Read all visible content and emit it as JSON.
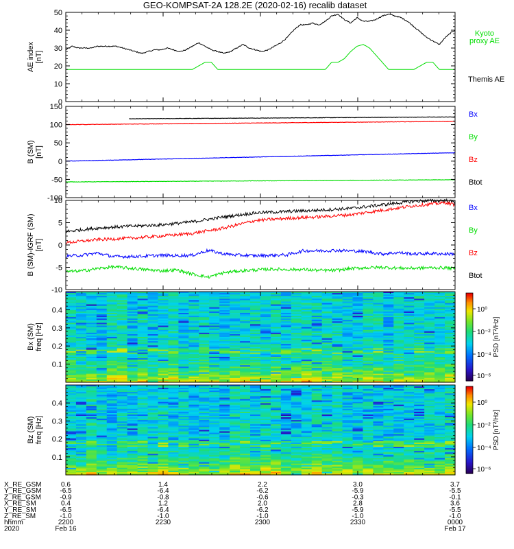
{
  "title": "GEO-KOMPSAT-2A 128.2E (2020-02-16) recalib dataset",
  "colors": {
    "black": "#000000",
    "red": "#ff0000",
    "blue": "#0000ff",
    "green": "#00dd00"
  },
  "chart_data": [
    {
      "type": "line",
      "panel": "ae",
      "ylabel": "AE index\n[nT]",
      "ylim": [
        0,
        50
      ],
      "yticks": [
        "0",
        "10",
        "20",
        "30",
        "40",
        "50"
      ],
      "grid": false,
      "legend": [
        {
          "label": "Kyoto\nproxy AE",
          "color": "#00dd00"
        },
        {
          "label": "Themis AE",
          "color": "#000000"
        }
      ],
      "series": [
        {
          "name": "Kyoto proxy AE",
          "color": "#00dd00",
          "x": [
            0,
            40,
            42,
            44,
            46,
            48,
            82,
            84,
            86,
            88,
            90,
            92,
            94,
            96,
            98,
            100,
            102,
            104,
            106,
            110,
            112,
            114,
            116,
            118,
            120,
            123
          ],
          "y": [
            18,
            18,
            20,
            22,
            22,
            18,
            18,
            22,
            22,
            24,
            28,
            31,
            32,
            30,
            26,
            22,
            18,
            18,
            18,
            18,
            20,
            22,
            22,
            18,
            18,
            18
          ]
        },
        {
          "name": "Themis AE",
          "color": "#000000",
          "x": [
            0,
            2,
            4,
            6,
            8,
            10,
            12,
            14,
            16,
            18,
            20,
            22,
            24,
            26,
            28,
            30,
            32,
            34,
            36,
            38,
            40,
            42,
            44,
            46,
            48,
            50,
            52,
            54,
            56,
            58,
            60,
            62,
            64,
            66,
            68,
            70,
            72,
            74,
            76,
            78,
            80,
            82,
            84,
            86,
            88,
            90,
            92,
            94,
            96,
            98,
            100,
            102,
            104,
            106,
            108,
            110,
            112,
            114,
            116,
            118,
            120,
            122,
            123
          ],
          "y": [
            29,
            31,
            30,
            30,
            30,
            31,
            31,
            31,
            31,
            30,
            29,
            28,
            27,
            28,
            29,
            29,
            30,
            29,
            28,
            29,
            31,
            33,
            31,
            29,
            28,
            27,
            28,
            30,
            32,
            30,
            29,
            28,
            29,
            31,
            33,
            36,
            40,
            43,
            43,
            44,
            43,
            45,
            48,
            49,
            46,
            44,
            47,
            45,
            45,
            46,
            48,
            49,
            48,
            47,
            45,
            42,
            39,
            36,
            34,
            32,
            36,
            39,
            40
          ]
        }
      ]
    },
    {
      "type": "line",
      "panel": "b_sm",
      "ylabel": "B (SM)\n[nT]",
      "ylim": [
        -100,
        150
      ],
      "yticks": [
        "-100",
        "-50",
        "0",
        "50",
        "100",
        "150"
      ],
      "grid": false,
      "legend": [
        {
          "label": "Bx",
          "color": "#0000ff"
        },
        {
          "label": "By",
          "color": "#00dd00"
        },
        {
          "label": "Bz",
          "color": "#ff0000"
        },
        {
          "label": "Btot",
          "color": "#000000"
        }
      ],
      "series": [
        {
          "name": "Btot",
          "color": "#000000",
          "x": [
            20,
            123
          ],
          "y": [
            116,
            121
          ]
        },
        {
          "name": "Bz",
          "color": "#ff0000",
          "x": [
            0,
            123
          ],
          "y": [
            100,
            109
          ]
        },
        {
          "name": "Bx",
          "color": "#0000ff",
          "x": [
            0,
            123
          ],
          "y": [
            0,
            23
          ]
        },
        {
          "name": "By",
          "color": "#00dd00",
          "x": [
            0,
            123
          ],
          "y": [
            -57,
            -51
          ]
        }
      ]
    },
    {
      "type": "line",
      "panel": "b_minus_igrf",
      "ylabel": "B (SM)-IGRF (SM)\n[nT]",
      "ylim": [
        -10,
        10
      ],
      "yticks": [
        "-10",
        "-5",
        "0",
        "5",
        "10"
      ],
      "grid": false,
      "legend": [
        {
          "label": "Bx",
          "color": "#0000ff"
        },
        {
          "label": "By",
          "color": "#00dd00"
        },
        {
          "label": "Bz",
          "color": "#ff0000"
        },
        {
          "label": "Btot",
          "color": "#000000"
        }
      ],
      "series": [
        {
          "name": "Btot",
          "color": "#000000",
          "x": [
            0,
            10,
            20,
            30,
            40,
            50,
            60,
            70,
            80,
            90,
            100,
            110,
            120,
            123
          ],
          "y": [
            3,
            3.8,
            4.2,
            4.5,
            5.2,
            6.3,
            7.2,
            7.5,
            7.8,
            8.2,
            9,
            9.8,
            10,
            9.6
          ]
        },
        {
          "name": "Bz",
          "color": "#ff0000",
          "x": [
            0,
            10,
            20,
            30,
            40,
            50,
            60,
            70,
            80,
            90,
            100,
            110,
            120,
            123
          ],
          "y": [
            0.5,
            1.2,
            1.5,
            2,
            2.6,
            3.8,
            5.5,
            6,
            6.3,
            6.8,
            7.8,
            8.8,
            9.5,
            9
          ]
        },
        {
          "name": "Bx",
          "color": "#0000ff",
          "x": [
            0,
            5,
            10,
            15,
            20,
            25,
            30,
            35,
            40,
            45,
            50,
            55,
            60,
            65,
            70,
            75,
            80,
            85,
            90,
            95,
            100,
            105,
            110,
            115,
            120,
            123
          ],
          "y": [
            -2.5,
            -2.3,
            -1.8,
            -2.6,
            -2.6,
            -2.5,
            -2.3,
            -2.4,
            -2.3,
            -1.2,
            -2,
            -2.3,
            -2.4,
            -2.3,
            -2.2,
            -1.3,
            -1.3,
            -1.2,
            -1.3,
            -1.5,
            -2,
            -1.7,
            -2,
            -1.9,
            -2,
            -2
          ]
        },
        {
          "name": "By",
          "color": "#00dd00",
          "x": [
            0,
            5,
            10,
            15,
            20,
            25,
            30,
            35,
            40,
            45,
            50,
            55,
            60,
            65,
            70,
            75,
            80,
            85,
            90,
            95,
            100,
            105,
            110,
            115,
            120,
            123
          ],
          "y": [
            -6,
            -5.8,
            -5.3,
            -4.9,
            -5.2,
            -5.5,
            -5.8,
            -5.6,
            -6.5,
            -7.2,
            -6.2,
            -5.8,
            -5.6,
            -5.4,
            -5.5,
            -5.5,
            -5.7,
            -5.7,
            -5.3,
            -5.1,
            -5,
            -5.2,
            -5.2,
            -5.1,
            -5.1,
            -5.3
          ]
        }
      ]
    },
    {
      "type": "heatmap",
      "panel": "bx_spec",
      "ylabel": "Bx (SM)\nfreq [Hz]",
      "ylim": [
        0,
        0.5
      ],
      "yticks": [
        "0.1",
        "0.2",
        "0.3",
        "0.4"
      ],
      "colorbar_label": "PSD [nT²/Hz]",
      "colorbar_ticks": [
        "10⁰",
        "10⁻²",
        "10⁻⁴",
        "10⁻⁶"
      ]
    },
    {
      "type": "heatmap",
      "panel": "bz_spec",
      "ylabel": "Bz (SM)\nfreq [Hz]",
      "ylim": [
        0,
        0.5
      ],
      "yticks": [
        "0.1",
        "0.2",
        "0.3",
        "0.4"
      ],
      "colorbar_label": "PSD [nT²/Hz]",
      "colorbar_ticks": [
        "10⁰",
        "10⁻²",
        "10⁻⁴",
        "10⁻⁶"
      ]
    }
  ],
  "orbit_table": {
    "row_labels": [
      "X_RE_GSM",
      "Y_RE_GSM",
      "Z_RE_GSM",
      "X_RE_SM",
      "Y_RE_SM",
      "Z_RE_SM",
      "hhmm",
      "2020"
    ],
    "columns": [
      [
        "0.6",
        "-6.5",
        "-0.9",
        "0.4",
        "-6.5",
        "-1.0",
        "2200",
        "Feb 16"
      ],
      [
        "1.4",
        "-6.4",
        "-0.8",
        "1.2",
        "-6.4",
        "-1.0",
        "2230",
        ""
      ],
      [
        "2.2",
        "-6.2",
        "-0.6",
        "2.0",
        "-6.2",
        "-1.0",
        "2300",
        ""
      ],
      [
        "3.0",
        "-5.9",
        "-0.3",
        "2.8",
        "-5.9",
        "-1.0",
        "2330",
        ""
      ],
      [
        "3.7",
        "-5.5",
        "-0.1",
        "3.6",
        "-5.5",
        "-1.0",
        "0000",
        "Feb 17"
      ]
    ]
  }
}
